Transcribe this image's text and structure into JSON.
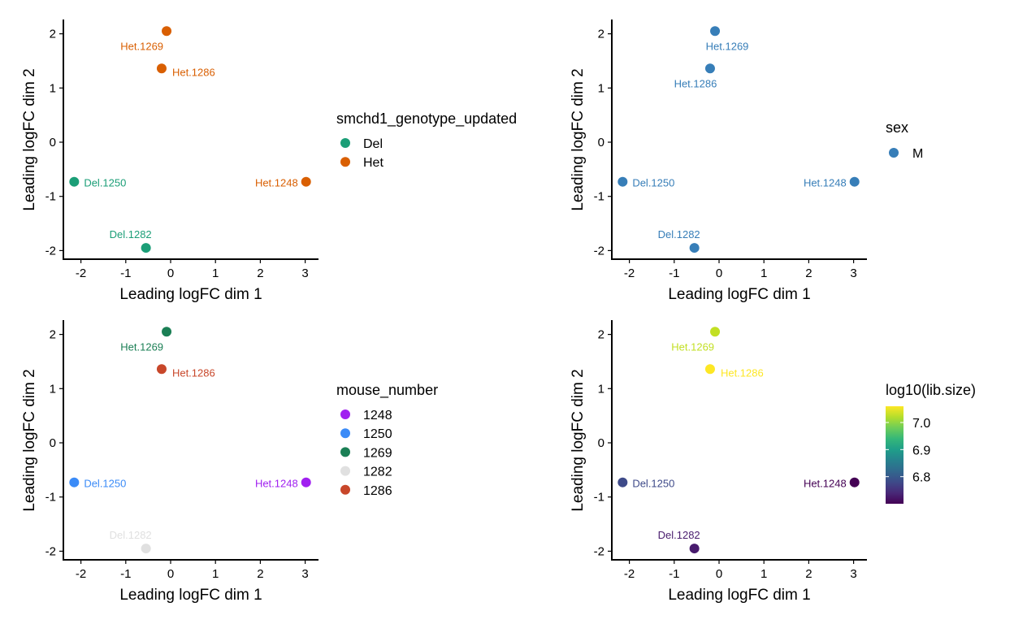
{
  "chart_data": [
    {
      "type": "scatter",
      "xlabel": "Leading logFC dim 1",
      "ylabel": "Leading logFC dim 2",
      "xlim": [
        -2.4,
        3.3
      ],
      "ylim": [
        -2.15,
        2.25
      ],
      "xticks": [
        "-2",
        "-1",
        "0",
        "1",
        "2",
        "3"
      ],
      "yticks": [
        "-2",
        "-1",
        "0",
        "1",
        "2"
      ],
      "legend": {
        "title": "smchd1_genotype_updated",
        "position": "right",
        "entries": [
          {
            "label": "Del",
            "color": "#1B9E77"
          },
          {
            "label": "Het",
            "color": "#D95F02"
          }
        ]
      },
      "points": [
        {
          "label": "Het.1269",
          "x": -0.09,
          "y": 2.05,
          "group": "Het",
          "color": "#D95F02"
        },
        {
          "label": "Het.1286",
          "x": -0.2,
          "y": 1.36,
          "group": "Het",
          "color": "#D95F02"
        },
        {
          "label": "Del.1250",
          "x": -2.15,
          "y": -0.73,
          "group": "Del",
          "color": "#1B9E77"
        },
        {
          "label": "Het.1248",
          "x": 3.02,
          "y": -0.73,
          "group": "Het",
          "color": "#D95F02"
        },
        {
          "label": "Del.1282",
          "x": -0.55,
          "y": -1.95,
          "group": "Del",
          "color": "#1B9E77"
        }
      ]
    },
    {
      "type": "scatter",
      "xlabel": "Leading logFC dim 1",
      "ylabel": "Leading logFC dim 2",
      "xlim": [
        -2.4,
        3.3
      ],
      "ylim": [
        -2.15,
        2.25
      ],
      "xticks": [
        "-2",
        "-1",
        "0",
        "1",
        "2",
        "3"
      ],
      "yticks": [
        "-2",
        "-1",
        "0",
        "1",
        "2"
      ],
      "legend": {
        "title": "sex",
        "position": "right",
        "entries": [
          {
            "label": "M",
            "color": "#377EB8"
          }
        ]
      },
      "points": [
        {
          "label": "Het.1269",
          "x": -0.09,
          "y": 2.05,
          "group": "M",
          "color": "#377EB8"
        },
        {
          "label": "Het.1286",
          "x": -0.2,
          "y": 1.36,
          "group": "M",
          "color": "#377EB8"
        },
        {
          "label": "Del.1250",
          "x": -2.15,
          "y": -0.73,
          "group": "M",
          "color": "#377EB8"
        },
        {
          "label": "Het.1248",
          "x": 3.02,
          "y": -0.73,
          "group": "M",
          "color": "#377EB8"
        },
        {
          "label": "Del.1282",
          "x": -0.55,
          "y": -1.95,
          "group": "M",
          "color": "#377EB8"
        }
      ]
    },
    {
      "type": "scatter",
      "xlabel": "Leading logFC dim 1",
      "ylabel": "Leading logFC dim 2",
      "xlim": [
        -2.4,
        3.3
      ],
      "ylim": [
        -2.15,
        2.25
      ],
      "xticks": [
        "-2",
        "-1",
        "0",
        "1",
        "2",
        "3"
      ],
      "yticks": [
        "-2",
        "-1",
        "0",
        "1",
        "2"
      ],
      "legend": {
        "title": "mouse_number",
        "position": "right",
        "entries": [
          {
            "label": "1248",
            "color": "#A020F0"
          },
          {
            "label": "1250",
            "color": "#3B8BF7"
          },
          {
            "label": "1269",
            "color": "#1B7F55"
          },
          {
            "label": "1282",
            "color": "#E0E0E0"
          },
          {
            "label": "1286",
            "color": "#C8472A"
          }
        ]
      },
      "points": [
        {
          "label": "Het.1269",
          "x": -0.09,
          "y": 2.05,
          "group": "1269",
          "color": "#1B7F55"
        },
        {
          "label": "Het.1286",
          "x": -0.2,
          "y": 1.36,
          "group": "1286",
          "color": "#C8472A"
        },
        {
          "label": "Del.1250",
          "x": -2.15,
          "y": -0.73,
          "group": "1250",
          "color": "#3B8BF7"
        },
        {
          "label": "Het.1248",
          "x": 3.02,
          "y": -0.73,
          "group": "1248",
          "color": "#A020F0"
        },
        {
          "label": "Del.1282",
          "x": -0.55,
          "y": -1.95,
          "group": "1282",
          "color": "#E0E0E0"
        }
      ]
    },
    {
      "type": "scatter",
      "xlabel": "Leading logFC dim 1",
      "ylabel": "Leading logFC dim 2",
      "xlim": [
        -2.4,
        3.3
      ],
      "ylim": [
        -2.15,
        2.25
      ],
      "xticks": [
        "-2",
        "-1",
        "0",
        "1",
        "2",
        "3"
      ],
      "yticks": [
        "-2",
        "-1",
        "0",
        "1",
        "2"
      ],
      "legend": {
        "title": "log10(lib.size)",
        "position": "right",
        "type": "colorbar",
        "scale": "viridis",
        "range": [
          6.7,
          7.06
        ],
        "ticks": [
          "6.8",
          "6.9",
          "7.0"
        ]
      },
      "points": [
        {
          "label": "Het.1269",
          "x": -0.09,
          "y": 2.05,
          "value": 7.01,
          "color": "#C2DF23"
        },
        {
          "label": "Het.1286",
          "x": -0.2,
          "y": 1.36,
          "value": 7.05,
          "color": "#FDE725"
        },
        {
          "label": "Del.1250",
          "x": -2.15,
          "y": -0.73,
          "value": 6.77,
          "color": "#3E4A89"
        },
        {
          "label": "Het.1248",
          "x": 3.02,
          "y": -0.73,
          "value": 6.71,
          "color": "#440154"
        },
        {
          "label": "Del.1282",
          "x": -0.55,
          "y": -1.95,
          "value": 6.73,
          "color": "#481B6D"
        }
      ]
    }
  ]
}
